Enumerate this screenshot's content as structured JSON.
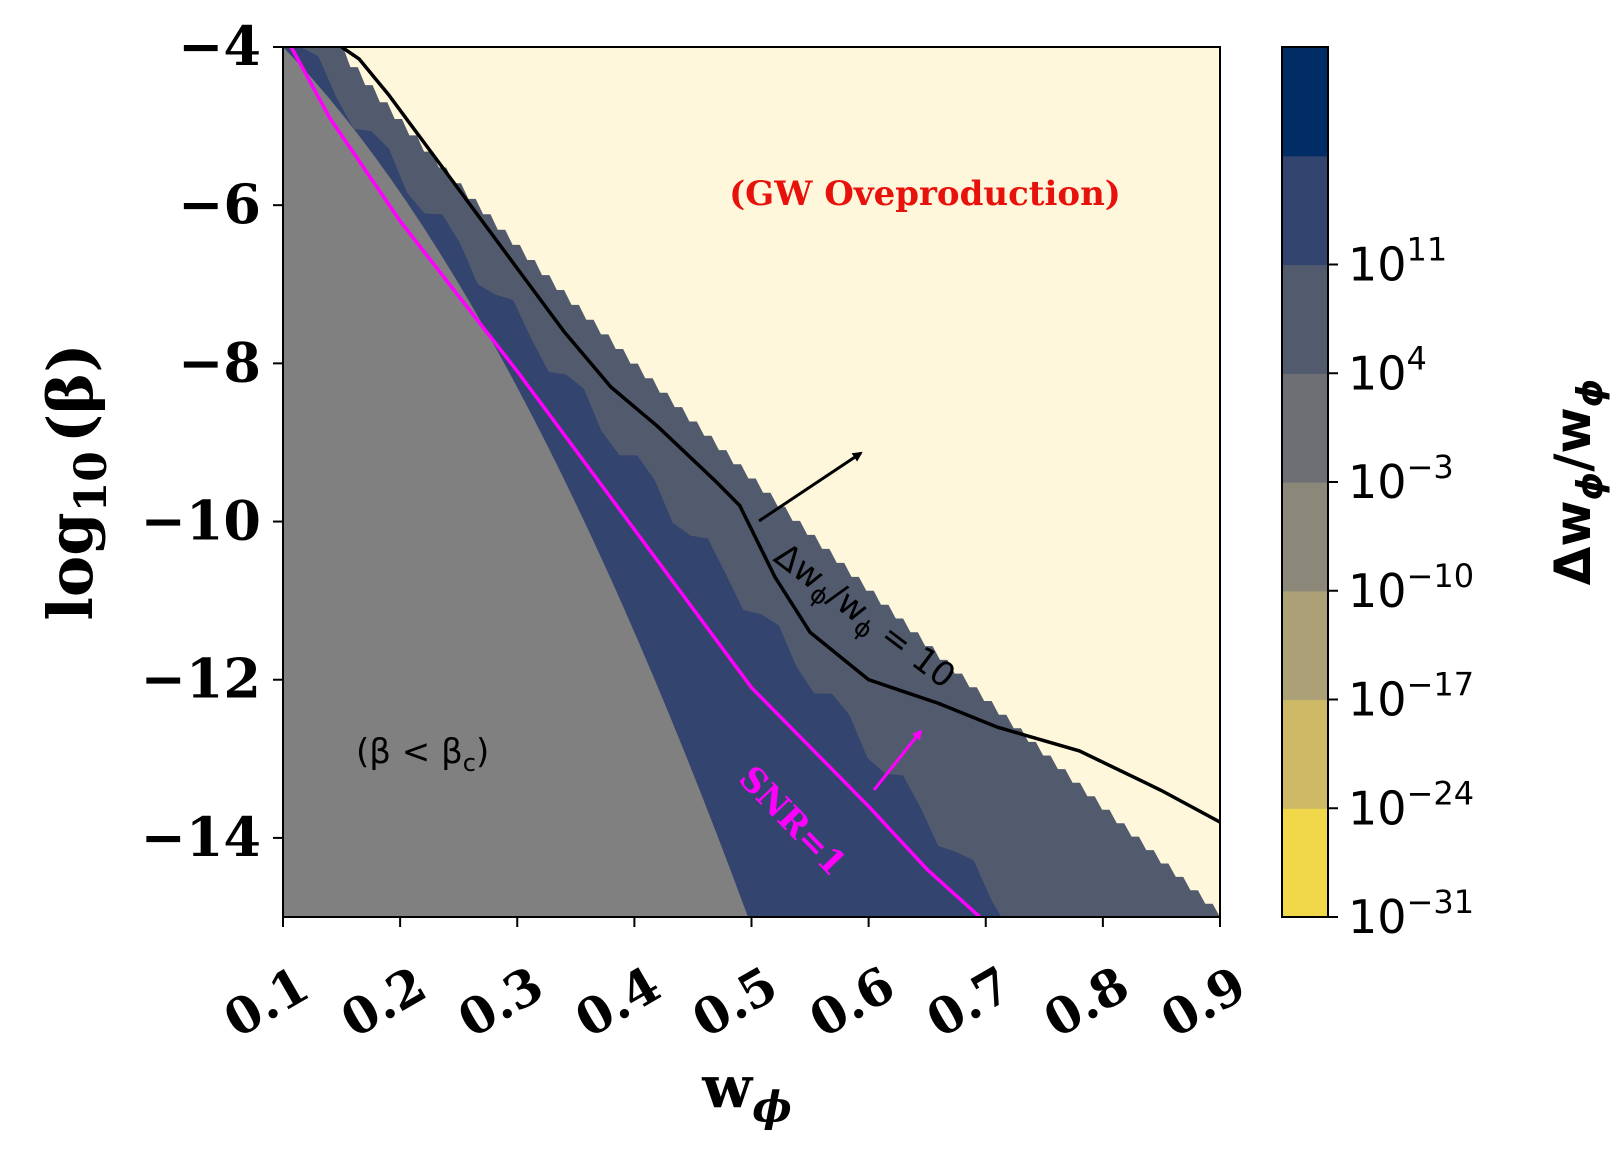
{
  "chart_data": {
    "type": "heatmap",
    "xlabel": "w",
    "xlabel_sub": "ϕ",
    "ylabel": "log",
    "ylabel_sub": "10",
    "ylabel_paren": "(β)",
    "xlim": [
      0.1,
      0.9
    ],
    "ylim": [
      -15,
      -4
    ],
    "x_ticks": [
      0.1,
      0.2,
      0.3,
      0.4,
      0.5,
      0.6,
      0.7,
      0.8,
      0.9
    ],
    "x_tick_labels": [
      "0.1",
      "0.2",
      "0.3",
      "0.4",
      "0.5",
      "0.6",
      "0.7",
      "0.8",
      "0.9"
    ],
    "y_ticks": [
      -4,
      -6,
      -8,
      -10,
      -12,
      -14
    ],
    "y_tick_labels": [
      "−4",
      "−6",
      "−8",
      "−10",
      "−12",
      "−14"
    ],
    "colorbar": {
      "label": "Δw",
      "label_sub": "ϕ",
      "label_mid": "/w",
      "label_sub2": "ϕ",
      "levels": [
        {
          "color": "#f0d84a"
        },
        {
          "color": "#cdb966"
        },
        {
          "color": "#aba076"
        },
        {
          "color": "#8b8779"
        },
        {
          "color": "#6e6f75"
        },
        {
          "color": "#525a6e"
        },
        {
          "color": "#33446e"
        },
        {
          "color": "#022c66"
        }
      ],
      "tick_labels": [
        {
          "base": "10",
          "exp": "−31"
        },
        {
          "base": "10",
          "exp": "−24"
        },
        {
          "base": "10",
          "exp": "−17"
        },
        {
          "base": "10",
          "exp": "−10"
        },
        {
          "base": "10",
          "exp": "−3"
        },
        {
          "base": "10",
          "exp": "4"
        },
        {
          "base": "10",
          "exp": "11"
        }
      ]
    },
    "region_colors": {
      "overproduction": "#fff7dc",
      "beta_below_critical": "#808080",
      "band_dark": "#33446e",
      "band_mid": "#525a6e"
    },
    "series": [
      {
        "name": "Δw_ϕ/w_ϕ = 10",
        "color": "#000000",
        "x": [
          0.15,
          0.165,
          0.19,
          0.24,
          0.3,
          0.34,
          0.38,
          0.42,
          0.47,
          0.49,
          0.52,
          0.55,
          0.6,
          0.66,
          0.71,
          0.78,
          0.85,
          0.9
        ],
        "y": [
          -4.0,
          -4.15,
          -4.6,
          -5.6,
          -6.8,
          -7.6,
          -8.3,
          -8.8,
          -9.5,
          -9.8,
          -10.7,
          -11.4,
          -12.0,
          -12.3,
          -12.6,
          -12.9,
          -13.4,
          -13.8
        ]
      },
      {
        "name": "SNR=1",
        "color": "#ff00ff",
        "x": [
          0.107,
          0.14,
          0.2,
          0.3,
          0.4,
          0.5,
          0.6,
          0.65,
          0.695
        ],
        "y": [
          -4.0,
          -4.9,
          -6.2,
          -8.1,
          -10.1,
          -12.1,
          -13.6,
          -14.4,
          -15.0
        ]
      }
    ],
    "annotations": {
      "overproduction": "(GW Oveproduction)",
      "below_critical": "(β < β",
      "below_critical_sub": "c",
      "below_critical_end": ")",
      "contour_label": "Δw",
      "contour_label_sub": "ϕ",
      "contour_label_mid": "/w",
      "contour_label_sub2": "ϕ",
      "contour_label_end": " = 10",
      "snr_label": "SNR=1"
    }
  }
}
